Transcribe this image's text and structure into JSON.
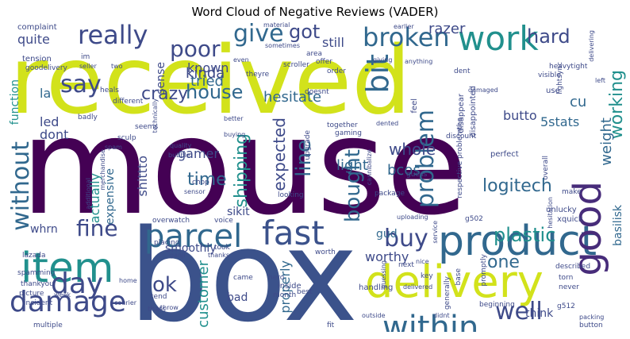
{
  "title": "Word Cloud of Negative Reviews (VADER)",
  "words": [
    {
      "text": "received",
      "color": "#d2e21b"
    },
    {
      "text": "mouse",
      "color": "#440154"
    },
    {
      "text": "box",
      "color": "#3b528b"
    },
    {
      "text": "product",
      "color": "#31688e"
    },
    {
      "text": "delivery",
      "color": "#d2e21b"
    },
    {
      "text": "item",
      "color": "#21908d"
    },
    {
      "text": "damage",
      "color": "#3e4a89"
    },
    {
      "text": "parcel",
      "color": "#31688e"
    },
    {
      "text": "fast",
      "color": "#3b528b"
    },
    {
      "text": "good",
      "color": "#472c7a"
    },
    {
      "text": "work",
      "color": "#21908d"
    },
    {
      "text": "day",
      "color": "#3e4a89"
    },
    {
      "text": "within",
      "color": "#31688e"
    },
    {
      "text": "without",
      "color": "#31688e"
    },
    {
      "text": "really",
      "color": "#3e4a89"
    },
    {
      "text": "broken",
      "color": "#31688e"
    },
    {
      "text": "give",
      "color": "#31688e"
    },
    {
      "text": "poor",
      "color": "#3e4a89"
    },
    {
      "text": "say",
      "color": "#3e4a89"
    },
    {
      "text": "buy",
      "color": "#3e4a89"
    },
    {
      "text": "bit",
      "color": "#31688e"
    },
    {
      "text": "fine",
      "color": "#3e4a89"
    },
    {
      "text": "well",
      "color": "#3e4a89"
    },
    {
      "text": "house",
      "color": "#31688e"
    },
    {
      "text": "hard",
      "color": "#3e4a89"
    },
    {
      "text": "got",
      "color": "#3e4a89"
    },
    {
      "text": "bought",
      "color": "#31688e"
    },
    {
      "text": "expected",
      "color": "#3e4a89"
    },
    {
      "text": "problem",
      "color": "#31688e"
    },
    {
      "text": "working",
      "color": "#21908d"
    },
    {
      "text": "shipping",
      "color": "#21908d"
    },
    {
      "text": "line",
      "color": "#31688e"
    },
    {
      "text": "logitech",
      "color": "#31688e"
    },
    {
      "text": "plastic",
      "color": "#21908d"
    },
    {
      "text": "one",
      "color": "#31688e"
    },
    {
      "text": "time",
      "color": "#31688e"
    },
    {
      "text": "ok",
      "color": "#3e4a89"
    },
    {
      "text": "hesitate",
      "color": "#31688e"
    },
    {
      "text": "customer",
      "color": "#21908d"
    },
    {
      "text": "weight",
      "color": "#31688e"
    },
    {
      "text": "crazy",
      "color": "#3e4a89"
    },
    {
      "text": "tried",
      "color": "#31688e"
    },
    {
      "text": "whole",
      "color": "#3e4a89"
    },
    {
      "text": "quite",
      "color": "#3e4a89"
    },
    {
      "text": "la",
      "color": "#31688e"
    },
    {
      "text": "led",
      "color": "#3e4a89"
    },
    {
      "text": "dont",
      "color": "#3e4a89"
    },
    {
      "text": "function",
      "color": "#21908d"
    },
    {
      "text": "known",
      "color": "#3e4a89"
    },
    {
      "text": "kinda",
      "color": "#3e4a89"
    },
    {
      "text": "razer",
      "color": "#3e4a89"
    },
    {
      "text": "still",
      "color": "#3e4a89"
    },
    {
      "text": "sense",
      "color": "#3e4a89"
    },
    {
      "text": "cu",
      "color": "#31688e"
    },
    {
      "text": "butto",
      "color": "#3e4a89"
    },
    {
      "text": "5stats",
      "color": "#31688e"
    },
    {
      "text": "bcos",
      "color": "#31688e"
    },
    {
      "text": "gamer",
      "color": "#3e4a89"
    },
    {
      "text": "light",
      "color": "#31688e"
    },
    {
      "text": "expensive",
      "color": "#31688e"
    },
    {
      "text": "actually",
      "color": "#21908d"
    },
    {
      "text": "shittto",
      "color": "#3e4a89"
    },
    {
      "text": "whrn",
      "color": "#3e4a89"
    },
    {
      "text": "sikit",
      "color": "#3e4a89"
    },
    {
      "text": "gud",
      "color": "#31688e"
    },
    {
      "text": "worthy",
      "color": "#3e4a89"
    },
    {
      "text": "basilisk",
      "color": "#31688e"
    },
    {
      "text": "think",
      "color": "#3e4a89"
    },
    {
      "text": "properly",
      "color": "#31688e"
    },
    {
      "text": "bad",
      "color": "#3e4a89"
    },
    {
      "text": "smoothly",
      "color": "#3e4a89"
    },
    {
      "text": "inside",
      "color": "#3e4a89"
    },
    {
      "text": "complaint",
      "color": "#3e4a89"
    },
    {
      "text": "material",
      "color": "#3e4a89"
    },
    {
      "text": "earlier",
      "color": "#3e4a89"
    },
    {
      "text": "heavytight",
      "color": "#3e4a89"
    },
    {
      "text": "tension",
      "color": "#3e4a89"
    },
    {
      "text": "goodelivery",
      "color": "#3e4a89"
    },
    {
      "text": "dent",
      "color": "#3e4a89"
    },
    {
      "text": "damaged",
      "color": "#3e4a89"
    },
    {
      "text": "lightsync",
      "color": "#3e4a89"
    },
    {
      "text": "disappointed",
      "color": "#3e4a89"
    },
    {
      "text": "disappear",
      "color": "#3e4a89"
    },
    {
      "text": "discount",
      "color": "#3e4a89"
    },
    {
      "text": "upgrade",
      "color": "#3e4a89"
    },
    {
      "text": "together",
      "color": "#3e4a89"
    },
    {
      "text": "gaming",
      "color": "#3e4a89"
    },
    {
      "text": "dented",
      "color": "#3e4a89"
    },
    {
      "text": "feel",
      "color": "#3e4a89"
    },
    {
      "text": "use",
      "color": "#3e4a89"
    },
    {
      "text": "scroller",
      "color": "#3e4a89"
    },
    {
      "text": "theyre",
      "color": "#3e4a89"
    },
    {
      "text": "doesnt",
      "color": "#3e4a89"
    },
    {
      "text": "offer",
      "color": "#3e4a89"
    },
    {
      "text": "order",
      "color": "#3e4a89"
    },
    {
      "text": "area",
      "color": "#3e4a89"
    },
    {
      "text": "giving",
      "color": "#3e4a89"
    },
    {
      "text": "anything",
      "color": "#3e4a89"
    },
    {
      "text": "sometimes",
      "color": "#3e4a89"
    },
    {
      "text": "heals",
      "color": "#3e4a89"
    },
    {
      "text": "technically",
      "color": "#3e4a89"
    },
    {
      "text": "different",
      "color": "#3e4a89"
    },
    {
      "text": "badly",
      "color": "#3e4a89"
    },
    {
      "text": "seems",
      "color": "#3e4a89"
    },
    {
      "text": "sculp",
      "color": "#3e4a89"
    },
    {
      "text": "spam",
      "color": "#3e4a89"
    },
    {
      "text": "quality",
      "color": "#3e4a89"
    },
    {
      "text": "bubble",
      "color": "#3e4a89"
    },
    {
      "text": "merchandise",
      "color": "#3e4a89"
    },
    {
      "text": "additional",
      "color": "#3e4a89"
    },
    {
      "text": "sensor",
      "color": "#3e4a89"
    },
    {
      "text": "chop",
      "color": "#3e4a89"
    },
    {
      "text": "better",
      "color": "#3e4a89"
    },
    {
      "text": "overwatch",
      "color": "#3e4a89"
    },
    {
      "text": "voice",
      "color": "#3e4a89"
    },
    {
      "text": "looking",
      "color": "#3e4a89"
    },
    {
      "text": "package",
      "color": "#3e4a89"
    },
    {
      "text": "cannibalize",
      "color": "#3e4a89"
    },
    {
      "text": "guess",
      "color": "#3e4a89"
    },
    {
      "text": "perfect",
      "color": "#3e4a89"
    },
    {
      "text": "overall",
      "color": "#3e4a89"
    },
    {
      "text": "respective problemthe",
      "color": "#3e4a89"
    },
    {
      "text": "make",
      "color": "#3e4a89"
    },
    {
      "text": "unlucky",
      "color": "#3e4a89"
    },
    {
      "text": "xquick",
      "color": "#3e4a89"
    },
    {
      "text": "g502",
      "color": "#3e4a89"
    },
    {
      "text": "uploading",
      "color": "#3e4a89"
    },
    {
      "text": "never",
      "color": "#3e4a89"
    },
    {
      "text": "torn",
      "color": "#3e4a89"
    },
    {
      "text": "described",
      "color": "#3e4a89"
    },
    {
      "text": "promptly",
      "color": "#3e4a89"
    },
    {
      "text": "base",
      "color": "#3e4a89"
    },
    {
      "text": "generally",
      "color": "#3e4a89"
    },
    {
      "text": "key",
      "color": "#3e4a89"
    },
    {
      "text": "next",
      "color": "#3e4a89"
    },
    {
      "text": "nice",
      "color": "#3e4a89"
    },
    {
      "text": "worth",
      "color": "#3e4a89"
    },
    {
      "text": "hero",
      "color": "#3e4a89"
    },
    {
      "text": "came",
      "color": "#3e4a89"
    },
    {
      "text": "month",
      "color": "#3e4a89"
    },
    {
      "text": "best",
      "color": "#3e4a89"
    },
    {
      "text": "handling",
      "color": "#3e4a89"
    },
    {
      "text": "delivered",
      "color": "#3e4a89"
    },
    {
      "text": "guessing",
      "color": "#3e4a89"
    },
    {
      "text": "beginning",
      "color": "#3e4a89"
    },
    {
      "text": "g512",
      "color": "#3e4a89"
    },
    {
      "text": "packing",
      "color": "#3e4a89"
    },
    {
      "text": "button",
      "color": "#3e4a89"
    },
    {
      "text": "fit",
      "color": "#3e4a89"
    },
    {
      "text": "thanks",
      "color": "#3e4a89"
    },
    {
      "text": "took",
      "color": "#3e4a89"
    },
    {
      "text": "placing",
      "color": "#3e4a89"
    },
    {
      "text": "ganji",
      "color": "#3e4a89"
    },
    {
      "text": "lazada",
      "color": "#3e4a89"
    },
    {
      "text": "spamming",
      "color": "#3e4a89"
    },
    {
      "text": "thankyou",
      "color": "#3e4a89"
    },
    {
      "text": "picture",
      "color": "#3e4a89"
    },
    {
      "text": "incident",
      "color": "#3e4a89"
    },
    {
      "text": "multiple",
      "color": "#3e4a89"
    },
    {
      "text": "tend",
      "color": "#3e4a89"
    },
    {
      "text": "thats",
      "color": "#3e4a89"
    },
    {
      "text": "courier",
      "color": "#3e4a89"
    },
    {
      "text": "home",
      "color": "#3e4a89"
    },
    {
      "text": "week",
      "color": "#3e4a89"
    },
    {
      "text": "im",
      "color": "#3e4a89"
    },
    {
      "text": "seller",
      "color": "#3e4a89"
    },
    {
      "text": "two",
      "color": "#3e4a89"
    },
    {
      "text": "even",
      "color": "#3e4a89"
    },
    {
      "text": "buying",
      "color": "#3e4a89"
    },
    {
      "text": "visible",
      "color": "#3e4a89"
    },
    {
      "text": "left",
      "color": "#3e4a89"
    },
    {
      "text": "throw",
      "color": "#3e4a89"
    },
    {
      "text": "didnt",
      "color": "#3e4a89"
    },
    {
      "text": "outside",
      "color": "#3e4a89"
    },
    {
      "text": "hesitation",
      "color": "#3e4a89"
    },
    {
      "text": "service",
      "color": "#3e4a89"
    },
    {
      "text": "delivering",
      "color": "#3e4a89"
    }
  ]
}
